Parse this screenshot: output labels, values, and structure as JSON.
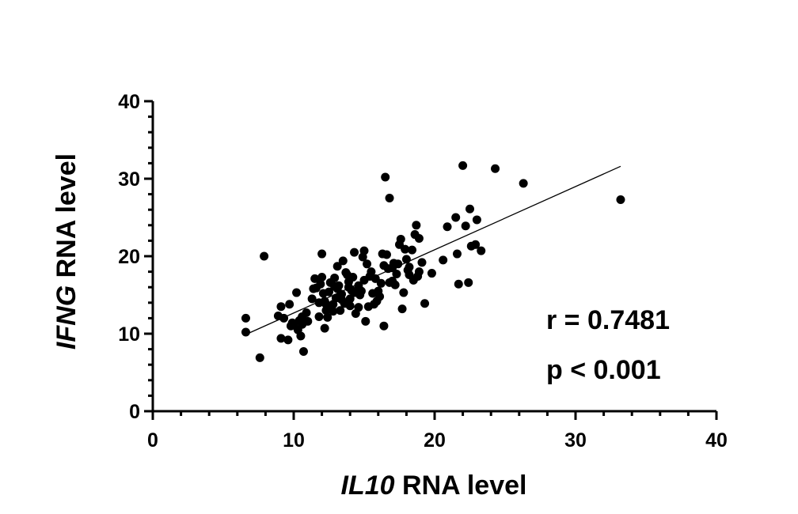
{
  "chart_data": {
    "type": "scatter",
    "xlabel_gene": "IL10",
    "xlabel_rest": " RNA level",
    "ylabel_gene": "IFNG",
    "ylabel_rest": " RNA level",
    "xlim": [
      0,
      40
    ],
    "ylim": [
      0,
      40
    ],
    "xticks": [
      0,
      10,
      20,
      30,
      40
    ],
    "yticks": [
      0,
      10,
      20,
      30,
      40
    ],
    "annotations": [
      "r = 0.7481",
      "p < 0.001"
    ],
    "regression": {
      "x": [
        6.6,
        33.2
      ],
      "y": [
        9.9,
        31.6
      ]
    },
    "x": [
      6.6,
      6.6,
      7.6,
      7.9,
      8.9,
      9.1,
      9.1,
      9.3,
      9.6,
      9.7,
      9.9,
      10.0,
      10.2,
      10.3,
      10.4,
      10.5,
      10.6,
      10.7,
      10.9,
      11.0,
      11.3,
      11.5,
      11.6,
      11.8,
      11.9,
      12.0,
      12.0,
      12.1,
      12.2,
      12.2,
      12.3,
      12.4,
      12.5,
      12.6,
      12.6,
      12.8,
      12.9,
      13.0,
      13.1,
      13.2,
      13.3,
      13.4,
      13.4,
      13.5,
      13.6,
      13.8,
      13.9,
      14.0,
      14.0,
      14.1,
      14.2,
      14.3,
      14.4,
      14.6,
      14.6,
      14.8,
      14.9,
      15.0,
      15.0,
      15.1,
      15.3,
      15.4,
      15.5,
      15.6,
      15.7,
      15.8,
      16.0,
      16.1,
      16.2,
      16.3,
      16.4,
      16.4,
      16.5,
      16.6,
      16.7,
      16.8,
      17.0,
      17.0,
      17.1,
      17.3,
      17.5,
      17.6,
      17.7,
      17.8,
      17.9,
      18.0,
      18.1,
      18.2,
      18.4,
      18.5,
      18.6,
      18.7,
      18.8,
      18.9,
      19.1,
      19.3,
      19.8,
      20.6,
      20.9,
      21.5,
      21.6,
      21.7,
      22.0,
      22.2,
      22.4,
      22.5,
      22.6,
      22.9,
      23.0,
      23.3,
      24.3,
      26.3,
      33.2,
      9.8,
      10.6,
      11.8,
      12.9,
      13.7,
      14.7,
      15.9,
      16.8,
      17.4,
      18.2,
      12.3,
      13.1,
      14.3,
      15.2,
      17.2,
      18.9,
      11.4,
      12.8,
      13.9
    ],
    "y": [
      12.0,
      10.2,
      6.9,
      20.0,
      12.3,
      9.4,
      13.5,
      12.0,
      9.2,
      13.8,
      11.4,
      11.1,
      15.3,
      10.5,
      11.7,
      9.7,
      11.2,
      7.7,
      12.7,
      11.6,
      14.5,
      17.1,
      15.9,
      12.2,
      16.4,
      17.3,
      20.3,
      15.2,
      10.7,
      14.2,
      13.8,
      12.1,
      15.4,
      16.6,
      13.3,
      12.9,
      17.2,
      14.6,
      18.7,
      16.2,
      13.0,
      15.1,
      14.4,
      19.4,
      13.9,
      17.6,
      16.0,
      14.5,
      13.6,
      15.6,
      17.3,
      20.5,
      12.6,
      16.2,
      13.4,
      15.5,
      19.9,
      20.7,
      16.9,
      11.6,
      13.5,
      17.4,
      18.0,
      15.2,
      13.8,
      17.1,
      15.5,
      14.8,
      16.5,
      20.3,
      11.0,
      18.8,
      30.2,
      20.2,
      18.4,
      27.5,
      16.8,
      18.5,
      19.1,
      17.7,
      21.5,
      22.2,
      13.2,
      15.3,
      20.9,
      19.6,
      18.2,
      17.6,
      20.8,
      16.9,
      22.8,
      24.0,
      17.4,
      22.3,
      19.2,
      13.9,
      17.8,
      19.5,
      23.8,
      25.0,
      20.3,
      16.4,
      31.7,
      23.9,
      16.6,
      26.1,
      21.3,
      21.5,
      24.7,
      20.7,
      31.3,
      29.4,
      27.3,
      11.0,
      12.2,
      14.0,
      16.1,
      17.9,
      15.0,
      14.2,
      16.6,
      19.0,
      18.6,
      13.0,
      15.8,
      15.3,
      19.0,
      16.3,
      18.0,
      15.8,
      13.8,
      16.7
    ]
  }
}
